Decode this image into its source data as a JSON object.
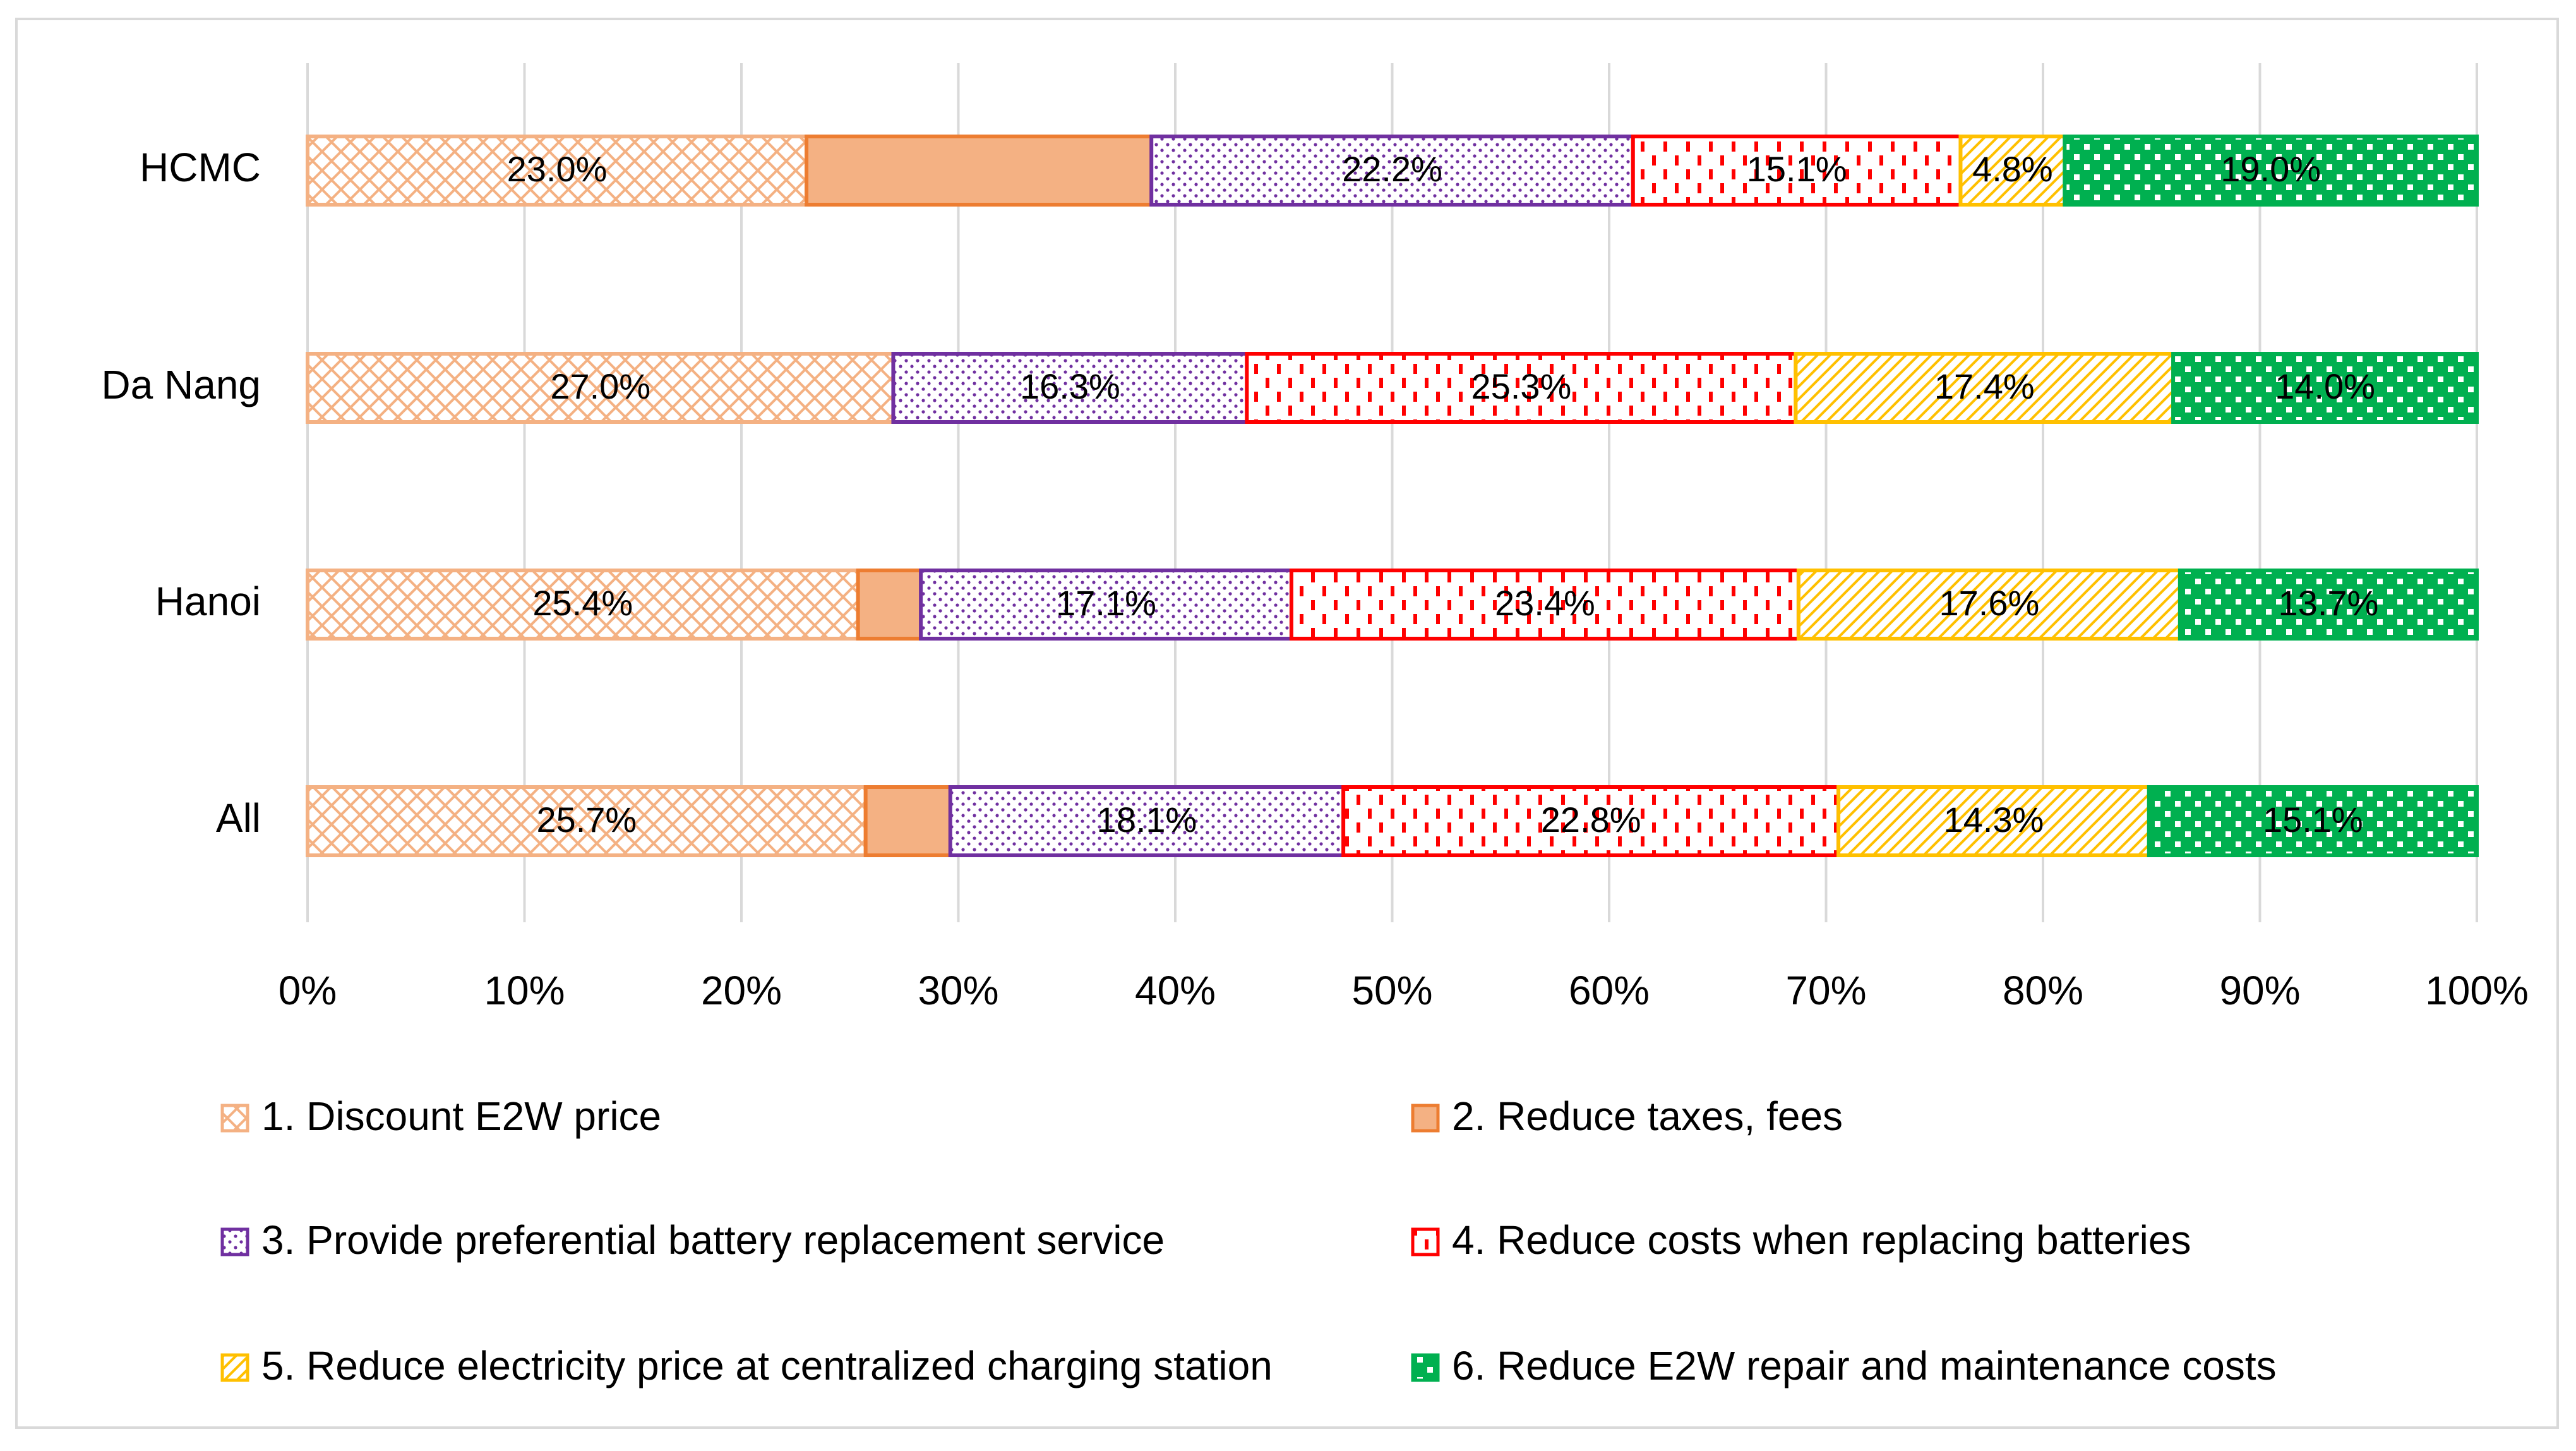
{
  "chart_data": {
    "type": "bar",
    "orientation": "horizontal",
    "stacked": "percent",
    "categories": [
      "HCMC",
      "Da Nang",
      "Hanoi",
      "All"
    ],
    "series": [
      {
        "name": "1. Discount E2W price",
        "values": [
          23.0,
          27.0,
          25.4,
          25.7
        ],
        "labels": [
          "23.0%",
          "27.0%",
          "25.4%",
          "25.7%"
        ],
        "color": "#f4b183",
        "pattern": "diagonal-cross"
      },
      {
        "name": "2. Reduce taxes, fees",
        "values": [
          15.9,
          0.0,
          2.9,
          3.9
        ],
        "labels": [
          "",
          "",
          "",
          ""
        ],
        "color": "#f4b183",
        "pattern": "solid"
      },
      {
        "name": "3. Provide preferential battery replacement service",
        "values": [
          22.2,
          16.3,
          17.1,
          18.1
        ],
        "labels": [
          "22.2%",
          "16.3%",
          "17.1%",
          "18.1%"
        ],
        "color": "#7030a0",
        "pattern": "dots"
      },
      {
        "name": "4. Reduce costs when replacing batteries",
        "values": [
          15.1,
          25.3,
          23.4,
          22.8
        ],
        "labels": [
          "15.1%",
          "25.3%",
          "23.4%",
          "22.8%"
        ],
        "color": "#ff0000",
        "pattern": "dashed-vertical"
      },
      {
        "name": "5. Reduce electricity price at centralized charging station",
        "values": [
          4.8,
          17.4,
          17.6,
          14.3
        ],
        "labels": [
          "4.8%",
          "17.4%",
          "17.6%",
          "14.3%"
        ],
        "color": "#ffc000",
        "pattern": "diagonal-lines"
      },
      {
        "name": "6. Reduce E2W repair and maintenance costs",
        "values": [
          19.0,
          14.0,
          13.7,
          15.1
        ],
        "labels": [
          "19.0%",
          "14.0%",
          "13.7%",
          "15.1%"
        ],
        "color": "#00b050",
        "pattern": "checker"
      }
    ],
    "x_ticks": [
      "0%",
      "10%",
      "20%",
      "30%",
      "40%",
      "50%",
      "60%",
      "70%",
      "80%",
      "90%",
      "100%"
    ],
    "xlim": [
      0,
      100
    ],
    "grid": "vertical",
    "legend_position": "bottom",
    "title": "",
    "xlabel": "",
    "ylabel": ""
  }
}
